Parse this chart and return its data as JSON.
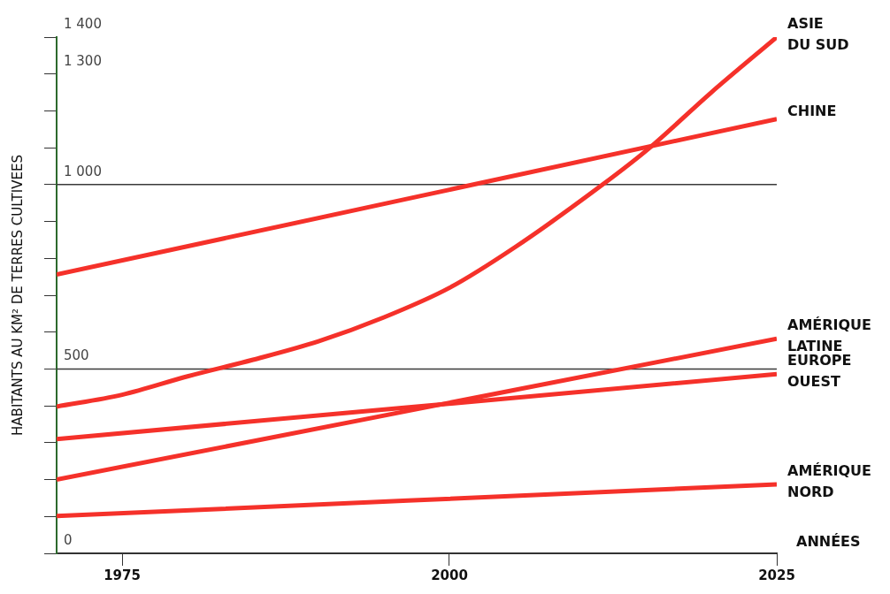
{
  "chart_data": {
    "type": "line",
    "xlabel": "ANNÉES",
    "ylabel": "HABITANTS AU KM² DE TERRES CULTIVEES",
    "xlim": [
      1970,
      2025
    ],
    "xticks": [
      1975,
      2000,
      2025
    ],
    "ylim": [
      0,
      1400
    ],
    "yticks": [
      0,
      {
        "value": 100,
        "label": null
      },
      {
        "value": 200,
        "label": null
      },
      {
        "value": 300,
        "label": null
      },
      {
        "value": 400,
        "label": null
      },
      500,
      {
        "value": 600,
        "label": null
      },
      {
        "value": 700,
        "label": null
      },
      {
        "value": 800,
        "label": null
      },
      {
        "value": 900,
        "label": null
      },
      {
        "value": 1000,
        "label": "1 000"
      },
      {
        "value": 1100,
        "label": null
      },
      {
        "value": 1200,
        "label": null
      },
      {
        "value": 1300,
        "label": "1 300"
      },
      {
        "value": 1400,
        "label": "1 400"
      }
    ],
    "grid": false,
    "legend": false,
    "marker": "none",
    "line_style": "solid",
    "ref_lines": [
      {
        "axis": "y",
        "value": 500,
        "color": "#3a3a3a"
      },
      {
        "axis": "y",
        "value": 1000,
        "color": "#3a3a3a"
      }
    ],
    "series": [
      {
        "name": "ASIE DU SUD",
        "color": "#f5312a",
        "x": [
          1970,
          1975,
          1980,
          1985,
          1990,
          1995,
          2000,
          2005,
          2011.7,
          2015.2,
          2020,
          2025
        ],
        "values": [
          398,
          430,
          480,
          525,
          575,
          640,
          720,
          830,
          1000,
          1097,
          1250,
          1400
        ]
      },
      {
        "name": "CHINE",
        "color": "#f5312a",
        "x": [
          1970,
          2025
        ],
        "values": [
          756,
          1178
        ]
      },
      {
        "name": "AMÉRIQUE LATINE",
        "color": "#f5312a",
        "x": [
          1970,
          2025
        ],
        "values": [
          200,
          582
        ]
      },
      {
        "name": "EUROPE OUEST",
        "color": "#f5312a",
        "x": [
          1970,
          2025
        ],
        "values": [
          310,
          486
        ]
      },
      {
        "name": "AMÉRIQUE NORD",
        "color": "#f5312a",
        "x": [
          1970,
          2025
        ],
        "values": [
          101,
          187
        ]
      }
    ]
  }
}
